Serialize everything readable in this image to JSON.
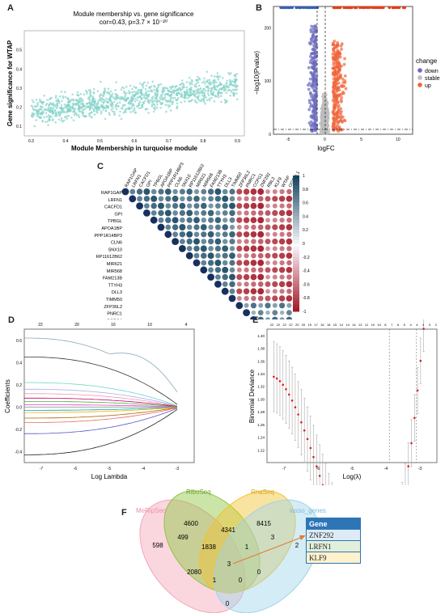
{
  "panels": {
    "A": {
      "letter": "A",
      "title": "Module membership vs. gene significance",
      "subtitle": "cor=0.43, p=3.7 × 10⁻²⁰",
      "xlabel": "Module Membership in turquoise module",
      "ylabel": "Gene significance for WTAP",
      "xticks": [
        "0.3",
        "0.4",
        "0.5",
        "0.6",
        "0.7",
        "0.8",
        "0.9"
      ],
      "yticks": [
        "0.1",
        "0.2",
        "0.3",
        "0.4",
        "0.5"
      ],
      "point_color": "#7fd1c8"
    },
    "B": {
      "letter": "B",
      "xlabel": "logFC",
      "ylabel": "−log10(Pvalue)",
      "xticks": [
        "-5",
        "0",
        "5",
        "10"
      ],
      "yticks": [
        "0",
        "100",
        "200"
      ],
      "legend_title": "change",
      "legend": [
        {
          "label": "down",
          "color": "#6b6bbf"
        },
        {
          "label": "stable",
          "color": "#bdbdbd"
        },
        {
          "label": "up",
          "color": "#f0663c"
        }
      ]
    },
    "C": {
      "letter": "C",
      "genes": [
        "RAP1GAP",
        "LRFN1",
        "CACFD1",
        "GPI",
        "TPBGL",
        "APOA1BP",
        "PPP1R14BP3",
        "CLN6",
        "SNX10",
        "RP11612B62",
        "MIR621",
        "MIR568",
        "FAM213B",
        "TTYH3",
        "DLL3",
        "TIMM50",
        "ZFP36L2",
        "PNRC1",
        "CCPG1",
        "ZNF292",
        "RBL2",
        "KLF9",
        "WTAP",
        "OGFRL1"
      ],
      "colorbar_ticks": [
        "1",
        "0.8",
        "0.6",
        "0.4",
        "0.2",
        "0",
        "-0.2",
        "-0.4",
        "-0.6",
        "-0.8",
        "-1"
      ]
    },
    "D": {
      "letter": "D",
      "xlabel": "Log Lambda",
      "ylabel": "Coefficients",
      "top_ticks": [
        "22",
        "20",
        "16",
        "10",
        "4"
      ],
      "xticks": [
        "-7",
        "-6",
        "-5",
        "-4",
        "-3"
      ],
      "yticks": [
        "-0.4",
        "-0.2",
        "0.0",
        "0.2",
        "0.4",
        "0.6"
      ]
    },
    "E": {
      "letter": "E",
      "xlabel": "Log(λ)",
      "ylabel": "Binomial Deviance",
      "top_ticks": [
        "22",
        "22",
        "22",
        "22",
        "20",
        "20",
        "19",
        "17",
        "16",
        "16",
        "15",
        "14",
        "14",
        "14",
        "13",
        "11",
        "10",
        "10",
        "8",
        "7",
        "6",
        "5",
        "4",
        "4",
        "4",
        "3",
        "2"
      ],
      "xticks": [
        "-7",
        "-6",
        "-5",
        "-4",
        "-3"
      ],
      "yticks": [
        "1.22",
        "1.24",
        "1.26",
        "1.28",
        "1.30",
        "1.32",
        "1.34",
        "1.36",
        "1.38",
        "1.40"
      ]
    },
    "F": {
      "letter": "F",
      "sets": [
        {
          "name": "MeRipSeq",
          "color": "#f4a6b8"
        },
        {
          "name": "RiboSeq",
          "color": "#8cc63f"
        },
        {
          "name": "RnaSeq",
          "color": "#f2c12e"
        },
        {
          "name": "lasso_genes",
          "color": "#9fd4e8"
        }
      ],
      "counts": [
        "598",
        "4600",
        "8415",
        "2",
        "499",
        "4341",
        "3",
        "1838",
        "1",
        "2080",
        "3",
        "0",
        "1",
        "0",
        "0"
      ],
      "table_header": "Gene",
      "table_genes": [
        "ZNF292",
        "LRFN1",
        "KLF9"
      ]
    }
  },
  "chart_data": [
    {
      "type": "scatter",
      "panel": "A",
      "title": "Module membership vs. gene significance",
      "xlabel": "Module Membership in turquoise module",
      "ylabel": "Gene significance for WTAP",
      "xlim": [
        0.28,
        0.92
      ],
      "ylim": [
        0.05,
        0.6
      ],
      "note_cor": 0.43
    },
    {
      "type": "scatter",
      "panel": "B",
      "xlabel": "logFC",
      "ylabel": "−log10(Pvalue)",
      "xlim": [
        -7,
        12
      ],
      "ylim": [
        0,
        240
      ],
      "thresholds_logfc": [
        -1,
        1
      ]
    },
    {
      "type": "heatmap",
      "panel": "C",
      "value_range": [
        -1,
        1
      ]
    },
    {
      "type": "line",
      "panel": "D",
      "xlabel": "Log Lambda",
      "ylabel": "Coefficients",
      "xlim": [
        -7.5,
        -2.5
      ],
      "ylim": [
        -0.5,
        0.7
      ]
    },
    {
      "type": "line",
      "panel": "E",
      "xlabel": "Log(λ)",
      "ylabel": "Binomial Deviance",
      "xlim": [
        -7.5,
        -2.5
      ],
      "ylim": [
        1.2,
        1.41
      ],
      "vlines": [
        -3.9,
        -3.1
      ]
    }
  ]
}
